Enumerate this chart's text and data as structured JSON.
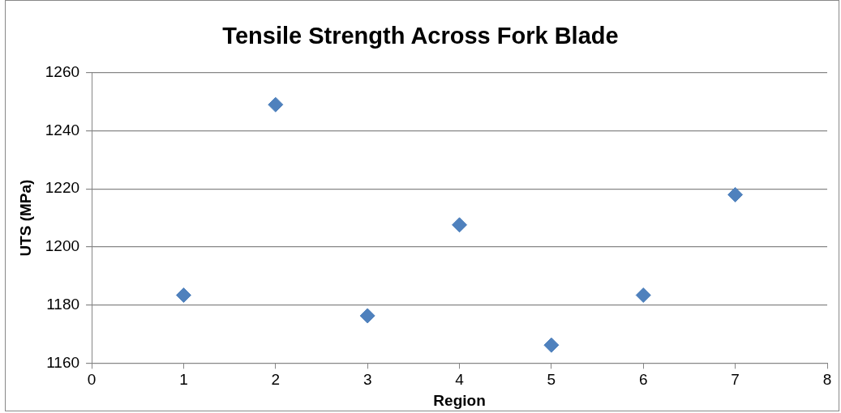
{
  "chart_data": {
    "type": "scatter",
    "title": "Tensile Strength Across Fork Blade",
    "xlabel": "Region",
    "ylabel": "UTS (MPa)",
    "x": [
      1,
      2,
      3,
      4,
      5,
      6,
      7
    ],
    "series": [
      {
        "color": "#4f81bd",
        "values": [
          1183.4,
          1249,
          1176.3,
          1207.6,
          1166.2,
          1183.4,
          1218
        ]
      }
    ],
    "xlim": [
      0,
      8
    ],
    "xticks": [
      0,
      1,
      2,
      3,
      4,
      5,
      6,
      7,
      8
    ],
    "ylim": [
      1160,
      1260
    ],
    "yticks": [
      1160,
      1180,
      1200,
      1220,
      1240,
      1260
    ],
    "grid": "y",
    "legend": false,
    "marker": "diamond"
  }
}
